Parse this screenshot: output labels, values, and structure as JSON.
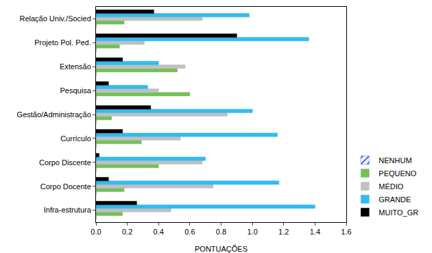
{
  "chart_data": {
    "type": "bar",
    "orientation": "horizontal",
    "x_label": "PONTUAÇÕES",
    "categories": [
      "Infra-estrutura",
      "Corpo Docente",
      "Corpo Discente",
      "Currículo",
      "Gestão/Administração",
      "Pesquisa",
      "Extensão",
      "Projeto Pol. Ped.",
      "Relação Univ./Socied"
    ],
    "series": [
      {
        "name": "NENHUM",
        "color": "#3b5bdb",
        "marker": "hatch",
        "values": [
          0,
          0,
          0,
          0,
          0,
          0,
          0,
          0,
          0
        ]
      },
      {
        "name": "PEQUENO",
        "color": "#74bf5a",
        "values": [
          0.17,
          0.18,
          0.4,
          0.29,
          0.1,
          0.6,
          0.52,
          0.15,
          0.18
        ]
      },
      {
        "name": "MÉDIO",
        "color": "#c0c0c0",
        "values": [
          0.48,
          0.75,
          0.68,
          0.54,
          0.84,
          0.4,
          0.57,
          0.31,
          0.68
        ]
      },
      {
        "name": "GRANDE",
        "color": "#33bbf0",
        "values": [
          1.4,
          1.17,
          0.7,
          1.16,
          1.0,
          0.33,
          0.4,
          1.36,
          0.98
        ]
      },
      {
        "name": "MUITO_GR",
        "color": "#000000",
        "values": [
          0.26,
          0.08,
          0.02,
          0.17,
          0.35,
          0.08,
          0.17,
          0.9,
          0.37
        ]
      }
    ],
    "xlim": [
      0,
      1.6
    ],
    "xticks": [
      {
        "value": 0,
        "label": "0.0"
      },
      0.2,
      0.4,
      0.6,
      0.8,
      {
        "value": 1,
        "label": "1.0"
      },
      1.2,
      1.4,
      1.6
    ],
    "grid": false,
    "legend": "lower right"
  }
}
